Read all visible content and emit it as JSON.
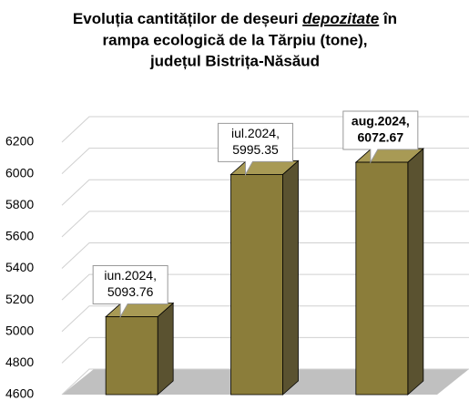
{
  "chart_data": {
    "type": "bar3d",
    "title": [
      "Evoluția cantităților de deșeuri ",
      "depozitate",
      " în",
      "rampa ecologică de la Tărpiu (tone),",
      "județul Bistrița-Năsăud"
    ],
    "categories": [
      "iun.2024,",
      "iul.2024,",
      "aug.2024,"
    ],
    "values": [
      5093.76,
      5995.35,
      6072.67
    ],
    "label_bold": [
      false,
      false,
      true
    ],
    "color": "#8b7d3a",
    "ylim": [
      4600,
      6200
    ],
    "yticks": [
      4600,
      4800,
      5000,
      5200,
      5400,
      5600,
      5800,
      6000,
      6200
    ],
    "grid": true
  }
}
